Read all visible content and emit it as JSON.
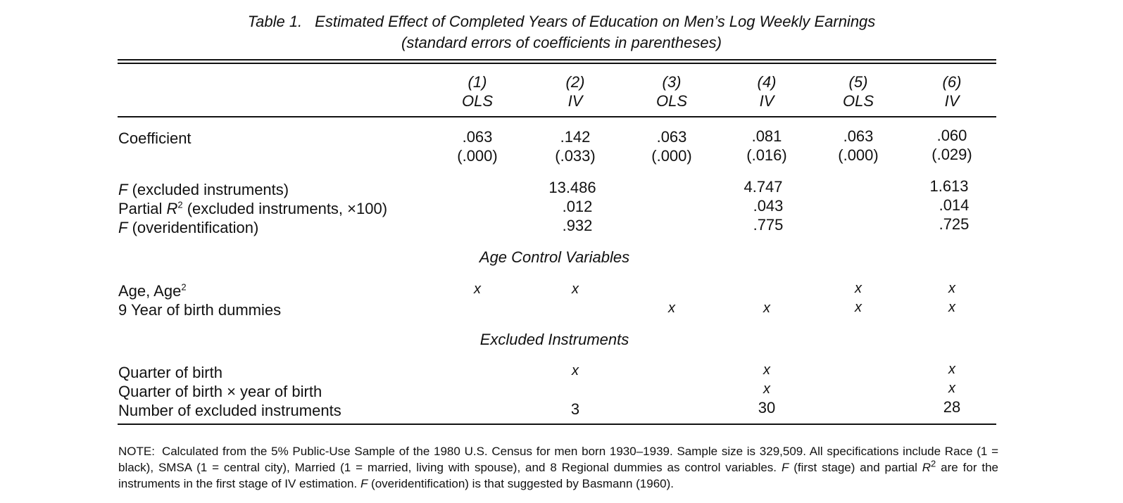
{
  "table": {
    "label": "Table 1.",
    "title": "Estimated Effect of Completed Years of Education on Men’s Log Weekly Earnings",
    "subtitle": "(standard errors of coefficients in parentheses)",
    "columns": [
      {
        "number": "(1)",
        "method": "OLS"
      },
      {
        "number": "(2)",
        "method": "IV"
      },
      {
        "number": "(3)",
        "method": "OLS"
      },
      {
        "number": "(4)",
        "method": "IV"
      },
      {
        "number": "(5)",
        "method": "OLS"
      },
      {
        "number": "(6)",
        "method": "IV"
      }
    ],
    "coefficient": {
      "label": "Coefficient",
      "values": [
        ".063",
        ".142",
        ".063",
        ".081",
        ".063",
        ".060"
      ],
      "std_errors": [
        "(.000)",
        "(.033)",
        "(.000)",
        "(.016)",
        "(.000)",
        "(.029)"
      ]
    },
    "stats": {
      "f_excluded": {
        "var": "F",
        "rest": " (excluded instruments)",
        "values": [
          "",
          "13.486",
          "",
          "4.747",
          "",
          "1.613"
        ]
      },
      "partial_r2": {
        "pre": "Partial ",
        "var": "R",
        "sup": "2",
        "rest": " (excluded instruments, ×100)",
        "values": [
          "",
          ".012",
          "",
          ".043",
          "",
          ".014"
        ]
      },
      "f_overid": {
        "var": "F",
        "rest": " (overidentification)",
        "values": [
          "",
          ".932",
          "",
          ".775",
          "",
          ".725"
        ]
      }
    },
    "age_controls": {
      "heading": "Age Control Variables",
      "age": {
        "label": "Age, Age",
        "sup": "2",
        "marks": [
          "x",
          "x",
          "",
          "",
          "x",
          "x"
        ]
      },
      "yob_dummies": {
        "label": "9 Year of birth dummies",
        "marks": [
          "",
          "",
          "x",
          "x",
          "x",
          "x"
        ]
      }
    },
    "instruments": {
      "heading": "Excluded Instruments",
      "qob": {
        "label": "Quarter of birth",
        "marks": [
          "",
          "x",
          "",
          "x",
          "",
          "x"
        ]
      },
      "qob_yob": {
        "label": "Quarter of birth × year of birth",
        "marks": [
          "",
          "",
          "",
          "x",
          "",
          "x"
        ]
      },
      "count": {
        "label": "Number of excluded instruments",
        "values": [
          "",
          "3",
          "",
          "30",
          "",
          "28"
        ]
      }
    },
    "note": {
      "label": "NOTE:",
      "part1": "Calculated from the 5% Public-Use Sample of the 1980 U.S. Census for men born 1930–1939. Sample size is 329,509. All specifications include Race (1 = black), SMSA (1 = central city), Married (1 = married, living with spouse), and 8 Regional dummies as control variables. ",
      "f1": "F",
      "part2": " (first stage) and partial ",
      "r": "R",
      "rsup": "2",
      "part3": " are for the instruments in the first stage of IV estimation. ",
      "f2": "F",
      "part4": " (overidentification) is that suggested by Basmann (1960)."
    }
  }
}
